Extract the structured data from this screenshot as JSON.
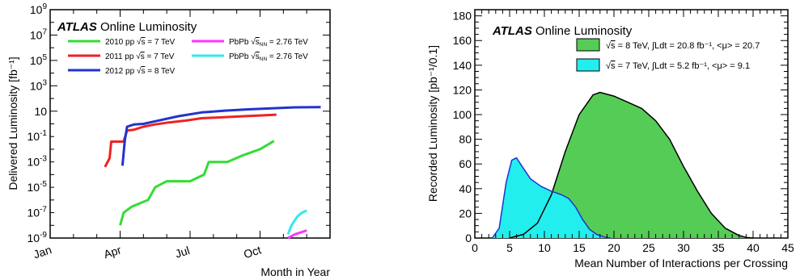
{
  "chart_data": [
    {
      "type": "line",
      "title": "ATLAS Online Luminosity",
      "brand": "ATLAS",
      "subtitle": "Online Luminosity",
      "xlabel": "Month in Year",
      "ylabel": "Delivered Luminosity [fb⁻¹]",
      "yscale": "log",
      "ylim": [
        1e-09,
        1000000000.0
      ],
      "xlim": [
        0,
        12
      ],
      "x_ticks": [
        {
          "value": 0,
          "label": "Jan"
        },
        {
          "value": 3,
          "label": "Apr"
        },
        {
          "value": 6,
          "label": "Jul"
        },
        {
          "value": 9,
          "label": "Oct"
        }
      ],
      "y_ticks": [
        {
          "value": 1e-09,
          "base": "10",
          "exp": "-9"
        },
        {
          "value": 1e-07,
          "base": "10",
          "exp": "-7"
        },
        {
          "value": 1e-05,
          "base": "10",
          "exp": "-5"
        },
        {
          "value": 0.001,
          "base": "10",
          "exp": "-3"
        },
        {
          "value": 0.1,
          "base": "10",
          "exp": "-1"
        },
        {
          "value": 10,
          "base": "10",
          "exp": ""
        },
        {
          "value": 1000,
          "base": "10",
          "exp": "3"
        },
        {
          "value": 100000.0,
          "base": "10",
          "exp": "5"
        },
        {
          "value": 10000000.0,
          "base": "10",
          "exp": "7"
        },
        {
          "value": 1000000000.0,
          "base": "10",
          "exp": "9"
        }
      ],
      "legend_position": "top-left",
      "series": [
        {
          "name": "2010 pp √s = 7 TeV",
          "label_pre": "2010 pp ",
          "label_post": " = 7 TeV",
          "color": "#33dd33",
          "x": [
            3.0,
            3.15,
            3.5,
            4.2,
            4.5,
            5.0,
            6.0,
            6.6,
            6.8,
            7.6,
            8.2,
            9.0,
            9.6
          ],
          "y": [
            1e-08,
            1e-07,
            3e-07,
            1e-06,
            1e-05,
            3e-05,
            3e-05,
            0.0001,
            0.001,
            0.001,
            0.003,
            0.01,
            0.045
          ]
        },
        {
          "name": "2011 pp √s = 7 TeV",
          "label_pre": "2011 pp ",
          "label_post": " = 7 TeV",
          "color": "#ee2222",
          "x": [
            2.35,
            2.55,
            2.62,
            3.15,
            3.3,
            3.6,
            4.0,
            4.5,
            5.1,
            5.8,
            6.5,
            7.2,
            7.8,
            8.3,
            9.0,
            9.7
          ],
          "y": [
            0.0004,
            0.002,
            0.04,
            0.04,
            0.3,
            0.35,
            0.6,
            0.9,
            1.3,
            1.8,
            2.8,
            3.2,
            3.6,
            4.0,
            4.6,
            5.3
          ]
        },
        {
          "name": "2012 pp √s = 8 TeV",
          "label_pre": "2012 pp ",
          "label_post": " = 8 TeV",
          "color": "#2233cc",
          "x": [
            3.1,
            3.2,
            3.3,
            3.6,
            4.0,
            4.5,
            5.5,
            6.5,
            7.5,
            8.5,
            9.5,
            10.5,
            11.6
          ],
          "y": [
            0.0005,
            0.05,
            0.6,
            0.9,
            1.0,
            1.6,
            4.0,
            8.0,
            11.0,
            14.0,
            17.0,
            20.0,
            21.0
          ]
        },
        {
          "name": "PbPb √s_NN = 2.76 TeV",
          "label_pre": "PbPb ",
          "label_post": " = 2.76 TeV",
          "color": "#ff33ff",
          "x": [
            10.2,
            10.5,
            10.8,
            11.0
          ],
          "y": [
            1e-09,
            2e-09,
            3e-09,
            4e-09
          ]
        },
        {
          "name": "PbPb √s_NN = 2.76 TeV",
          "label_pre": "PbPb ",
          "label_post": " = 2.76 TeV",
          "color": "#33e8ee",
          "x": [
            10.2,
            10.35,
            10.6,
            10.8,
            11.0
          ],
          "y": [
            2e-09,
            1e-08,
            5e-08,
            1e-07,
            1.5e-07
          ]
        }
      ]
    },
    {
      "type": "area",
      "title": "ATLAS Online Luminosity",
      "brand": "ATLAS",
      "subtitle": "Online Luminosity",
      "xlabel": "Mean Number of Interactions per Crossing",
      "ylabel": "Recorded Luminosity [pb⁻¹/0.1]",
      "xlim": [
        0,
        45
      ],
      "ylim": [
        0,
        185
      ],
      "x_ticks": [
        0,
        5,
        10,
        15,
        20,
        25,
        30,
        35,
        40,
        45
      ],
      "y_ticks": [
        0,
        20,
        40,
        60,
        80,
        100,
        120,
        140,
        160,
        180
      ],
      "legend_position": "top-right",
      "series": [
        {
          "name": "√s = 8 TeV, ∫Ldt = 20.8 fb⁻¹, <μ> = 20.7",
          "legend_text": " = 8 TeV, ∫Ldt = 20.8 fb⁻¹, <μ> = 20.7",
          "color": "#55cc55",
          "x": [
            5,
            7,
            9,
            11,
            13,
            15,
            17,
            18,
            20,
            22,
            24,
            26,
            28,
            30,
            32,
            34,
            36,
            38,
            39,
            40
          ],
          "y": [
            0,
            3,
            12,
            35,
            70,
            100,
            116,
            118,
            115,
            110,
            105,
            95,
            80,
            58,
            38,
            20,
            8,
            2,
            0.5,
            0
          ]
        },
        {
          "name": "√s = 7 TeV, ∫Ldt = 5.2 fb⁻¹, <μ> = 9.1",
          "legend_text": " = 7 TeV, ∫Ldt = 5.2 fb⁻¹, <μ> =  9.1",
          "color": "#22eeee",
          "x": [
            2.5,
            3.5,
            4.5,
            5.3,
            6.0,
            6.8,
            8.0,
            9.5,
            11.0,
            12.5,
            13.5,
            14.5,
            15.5,
            16.5,
            17.5,
            18.5,
            19.5
          ],
          "y": [
            0,
            8,
            45,
            63,
            65,
            58,
            48,
            42,
            38,
            35,
            32,
            25,
            15,
            7,
            3,
            1,
            0
          ]
        }
      ]
    }
  ]
}
